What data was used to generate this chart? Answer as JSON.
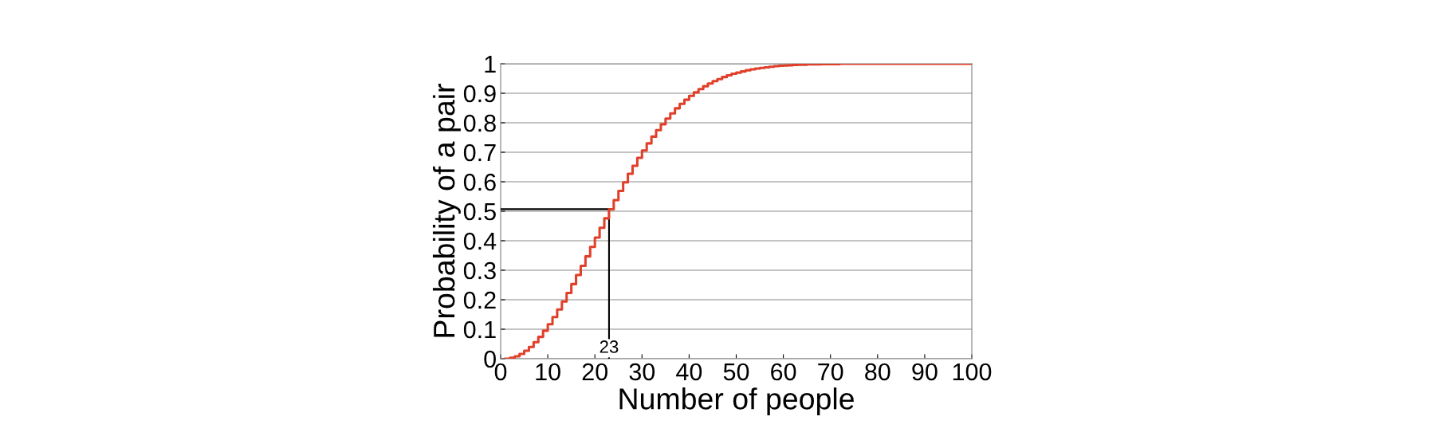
{
  "chart_data": {
    "type": "step",
    "xlabel": "Number of people",
    "ylabel": "Probability of a pair",
    "xlim": [
      0,
      100
    ],
    "xticks": [
      0,
      10,
      20,
      30,
      40,
      50,
      60,
      70,
      80,
      90,
      100
    ],
    "ylim": [
      0,
      1
    ],
    "yticks": [
      0,
      0.1,
      0.2,
      0.3,
      0.4,
      0.5,
      0.6,
      0.7,
      0.8,
      0.9,
      1
    ],
    "grid": "y",
    "legend": false,
    "annotations": [
      {
        "text": "23",
        "x": 23,
        "y": 0
      }
    ],
    "series": [
      {
        "type": "line",
        "color": "#000000",
        "x": [
          0,
          23,
          23
        ],
        "values": [
          0.507,
          0.507,
          0
        ]
      },
      {
        "color": "#e0402a",
        "x": [
          1,
          2,
          3,
          4,
          5,
          6,
          7,
          8,
          9,
          10,
          11,
          12,
          13,
          14,
          15,
          16,
          17,
          18,
          19,
          20,
          21,
          22,
          23,
          24,
          25,
          26,
          27,
          28,
          29,
          30,
          31,
          32,
          33,
          34,
          35,
          36,
          37,
          38,
          39,
          40,
          41,
          42,
          43,
          44,
          45,
          46,
          47,
          48,
          49,
          50,
          51,
          52,
          53,
          54,
          55,
          56,
          57,
          58,
          59,
          60,
          61,
          62,
          63,
          64,
          65,
          66,
          67,
          68,
          69,
          70,
          71,
          72,
          73,
          74,
          75,
          76,
          77,
          78,
          79,
          80,
          81,
          82,
          83,
          84,
          85,
          86,
          87,
          88,
          89,
          90,
          91,
          92,
          93,
          94,
          95,
          96,
          97,
          98,
          99,
          100
        ],
        "values": [
          0,
          0.003,
          0.008,
          0.016,
          0.027,
          0.04,
          0.056,
          0.074,
          0.095,
          0.117,
          0.141,
          0.167,
          0.194,
          0.223,
          0.253,
          0.284,
          0.315,
          0.347,
          0.379,
          0.411,
          0.444,
          0.476,
          0.507,
          0.538,
          0.569,
          0.598,
          0.627,
          0.654,
          0.681,
          0.706,
          0.73,
          0.753,
          0.775,
          0.795,
          0.814,
          0.832,
          0.849,
          0.864,
          0.878,
          0.891,
          0.903,
          0.914,
          0.924,
          0.933,
          0.941,
          0.948,
          0.955,
          0.961,
          0.966,
          0.97,
          0.974,
          0.978,
          0.981,
          0.984,
          0.986,
          0.988,
          0.99,
          0.992,
          0.993,
          0.994,
          0.995,
          0.996,
          0.997,
          0.997,
          0.998,
          0.998,
          0.998,
          0.999,
          0.999,
          0.999,
          0.999,
          1,
          1,
          1,
          1,
          1,
          1,
          1,
          1,
          1,
          1,
          1,
          1,
          1,
          1,
          1,
          1,
          1,
          1,
          1,
          1,
          1,
          1,
          1,
          1,
          1,
          1,
          1,
          1,
          1
        ]
      }
    ]
  }
}
